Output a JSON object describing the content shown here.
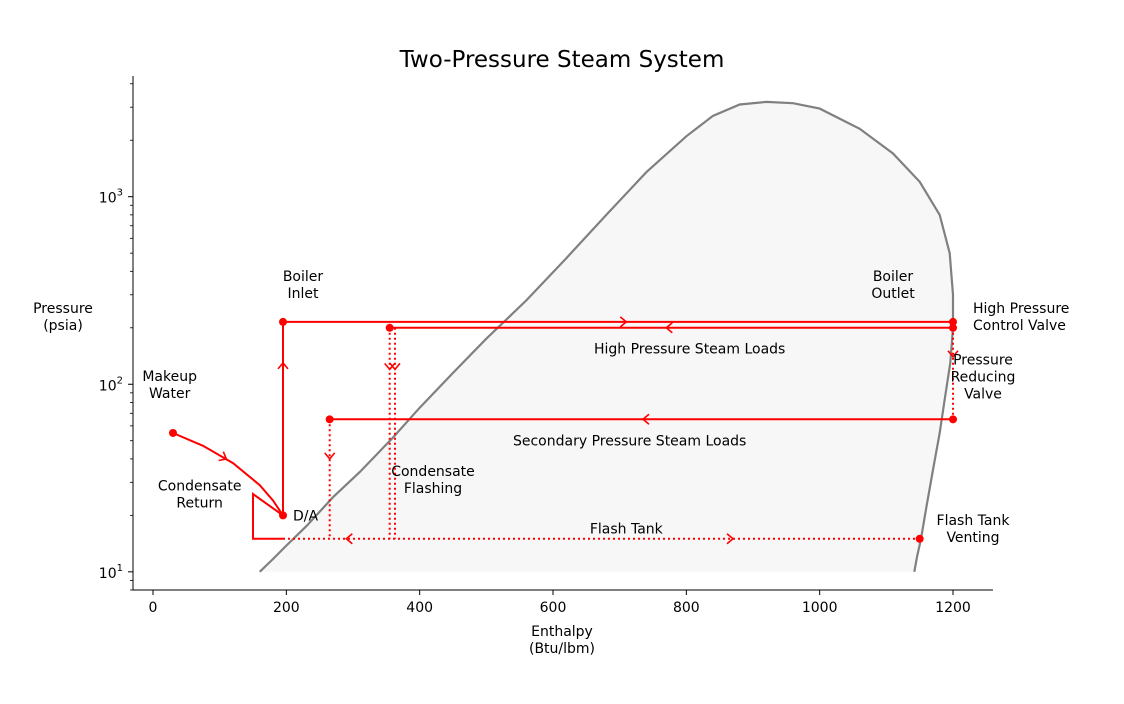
{
  "chart_data": {
    "type": "line",
    "title": "Two-Pressure Steam System",
    "xlabel": [
      "Enthalpy",
      "(Btu/lbm)"
    ],
    "ylabel": [
      "Pressure",
      "(psia)"
    ],
    "xlim": [
      -30,
      1260
    ],
    "ylim": [
      8,
      4400
    ],
    "yscale": "log",
    "xticks": [
      0,
      200,
      400,
      600,
      800,
      1000,
      1200
    ],
    "yticks": [
      {
        "value": 10,
        "base": "10",
        "exp": "1"
      },
      {
        "value": 100,
        "base": "10",
        "exp": "2"
      },
      {
        "value": 1000,
        "base": "10",
        "exp": "3"
      }
    ],
    "dome": {
      "fill": "#f7f7f7",
      "stroke": "#808080",
      "points": [
        [
          160,
          10
        ],
        [
          180,
          11.7
        ],
        [
          200,
          13.8
        ],
        [
          230,
          17.5
        ],
        [
          270,
          25
        ],
        [
          310,
          34
        ],
        [
          360,
          52
        ],
        [
          400,
          75
        ],
        [
          450,
          115
        ],
        [
          500,
          175
        ],
        [
          560,
          280
        ],
        [
          620,
          470
        ],
        [
          680,
          800
        ],
        [
          740,
          1350
        ],
        [
          800,
          2100
        ],
        [
          840,
          2700
        ],
        [
          880,
          3100
        ],
        [
          920,
          3200
        ],
        [
          960,
          3150
        ],
        [
          1000,
          2950
        ],
        [
          1060,
          2300
        ],
        [
          1110,
          1700
        ],
        [
          1150,
          1200
        ],
        [
          1180,
          800
        ],
        [
          1195,
          500
        ],
        [
          1200,
          300
        ],
        [
          1200,
          200
        ],
        [
          1196,
          130
        ],
        [
          1188,
          85
        ],
        [
          1180,
          55
        ],
        [
          1170,
          35
        ],
        [
          1160,
          22
        ],
        [
          1152,
          15
        ],
        [
          1146,
          12
        ],
        [
          1142,
          10
        ]
      ]
    },
    "solid_lines": [
      {
        "points": [
          [
            195,
            20
          ],
          [
            195,
            215
          ],
          [
            1200,
            215
          ]
        ],
        "arrows": [
          [
            195,
            130,
            "up"
          ],
          [
            710,
            215,
            "right"
          ]
        ]
      },
      {
        "points": [
          [
            1200,
            200
          ],
          [
            355,
            200
          ]
        ],
        "arrows": [
          [
            770,
            200,
            "left"
          ]
        ]
      },
      {
        "points": [
          [
            1200,
            65
          ],
          [
            265,
            65
          ]
        ],
        "arrows": [
          [
            735,
            65,
            "left"
          ]
        ]
      },
      {
        "points": [
          [
            30,
            55
          ],
          [
            75,
            47
          ],
          [
            120,
            38
          ],
          [
            160,
            29
          ],
          [
            180,
            24
          ],
          [
            195,
            20
          ]
        ],
        "arrows": [
          [
            110,
            40,
            "downright"
          ]
        ]
      },
      {
        "points": [
          [
            195,
            20
          ],
          [
            150,
            26
          ],
          [
            150,
            15
          ],
          [
            195,
            15
          ]
        ],
        "arrows": []
      }
    ],
    "dotted_lines": [
      {
        "points": [
          [
            1200,
            200
          ],
          [
            1200,
            65
          ]
        ],
        "arrows": [
          [
            1200,
            140,
            "down"
          ]
        ]
      },
      {
        "points": [
          [
            355,
            200
          ],
          [
            355,
            15
          ]
        ],
        "arrows": [
          [
            355,
            120,
            "down"
          ]
        ]
      },
      {
        "points": [
          [
            363,
            200
          ],
          [
            363,
            15
          ]
        ],
        "arrows": [
          [
            363,
            120,
            "down"
          ]
        ]
      },
      {
        "points": [
          [
            265,
            65
          ],
          [
            265,
            15
          ]
        ],
        "arrows": [
          [
            265,
            40,
            "down"
          ]
        ]
      },
      {
        "points": [
          [
            195,
            15
          ],
          [
            1150,
            15
          ]
        ],
        "arrows": [
          [
            290,
            15,
            "left"
          ],
          [
            870,
            15,
            "right"
          ]
        ]
      }
    ],
    "points": [
      [
        30,
        55
      ],
      [
        195,
        20
      ],
      [
        195,
        215
      ],
      [
        355,
        200
      ],
      [
        1200,
        215
      ],
      [
        1200,
        200
      ],
      [
        1200,
        65
      ],
      [
        265,
        65
      ],
      [
        1150,
        15
      ]
    ],
    "color": "#ff0000",
    "annotations": [
      {
        "lines": [
          "Boiler",
          "Inlet"
        ],
        "x": 225,
        "y": 340,
        "anchor": "middle"
      },
      {
        "lines": [
          "Boiler",
          "Outlet"
        ],
        "x": 1110,
        "y": 340,
        "anchor": "middle"
      },
      {
        "lines": [
          "High Pressure",
          "Control Valve"
        ],
        "x": 1230,
        "y": 230,
        "anchor": "start"
      },
      {
        "lines": [
          "High Pressure Steam Loads"
        ],
        "x": 805,
        "y": 155,
        "anchor": "middle"
      },
      {
        "lines": [
          "Pressure",
          "Reducing",
          "Valve"
        ],
        "x": 1245,
        "y": 110,
        "anchor": "middle"
      },
      {
        "lines": [
          "Makeup",
          "Water"
        ],
        "x": 25,
        "y": 100,
        "anchor": "middle"
      },
      {
        "lines": [
          "Secondary Pressure Steam Loads"
        ],
        "x": 715,
        "y": 50,
        "anchor": "middle"
      },
      {
        "lines": [
          "D/A"
        ],
        "x": 210,
        "y": 20,
        "anchor": "start"
      },
      {
        "lines": [
          "Condensate",
          "Return"
        ],
        "x": 70,
        "y": 26,
        "anchor": "middle"
      },
      {
        "lines": [
          "Condensate",
          "Flashing"
        ],
        "x": 420,
        "y": 31,
        "anchor": "middle"
      },
      {
        "lines": [
          "Flash Tank"
        ],
        "x": 710,
        "y": 17,
        "anchor": "middle"
      },
      {
        "lines": [
          "Flash Tank",
          "Venting"
        ],
        "x": 1230,
        "y": 17,
        "anchor": "middle"
      }
    ]
  }
}
